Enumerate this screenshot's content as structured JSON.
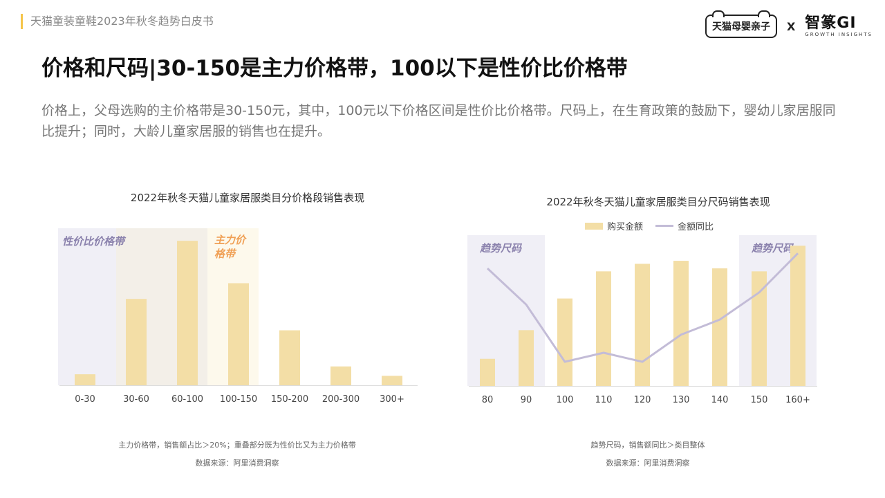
{
  "header": {
    "title": "天猫童装童鞋2023年秋冬趋势白皮书"
  },
  "logos": {
    "tmall": "天猫母婴亲子",
    "x": "X",
    "gi_main": "智篆GI",
    "gi_sub": "GROWTH INSIGHTS"
  },
  "main_title": "价格和尺码|30-150是主力价格带，100以下是性价比价格带",
  "description": "价格上，父母选购的主价格带是30-150元，其中，100元以下价格区间是性价比价格带。尺码上，在生育政策的鼓励下，婴幼儿家居服同比提升；同时，大龄儿童家居服的销售也在提升。",
  "colors": {
    "bar": "#f3dea6",
    "line": "#c3bcd7",
    "zone_purple": "#f0eff6",
    "zone_mixed": "#f3efe8",
    "zone_yellow": "#fdf9ec",
    "label_purple": "#8b82ad",
    "label_orange": "#f0a055",
    "axis": "#dddddd"
  },
  "chart_data": [
    {
      "type": "bar",
      "title": "2022年秋冬天猫儿童家居服类目分价格段销售表现",
      "categories": [
        "0-30",
        "30-60",
        "60-100",
        "100-150",
        "150-200",
        "200-300",
        "300+"
      ],
      "values": [
        7,
        55,
        92,
        65,
        35,
        12,
        6
      ],
      "ylim": [
        0,
        100
      ],
      "zones": [
        {
          "label": "性价比价格带",
          "from": "0-30",
          "to": "60-100"
        },
        {
          "label": "主力价格带",
          "from": "30-60",
          "to": "100-150"
        }
      ],
      "notes": [
        "主力价格带，销售额占比＞20%；重叠部分既为性价比又为主力价格带",
        "数据来源：阿里消费洞察"
      ]
    },
    {
      "type": "bar",
      "title": "2022年秋冬天猫儿童家居服类目分尺码销售表现",
      "categories": [
        "80",
        "90",
        "100",
        "110",
        "120",
        "130",
        "140",
        "150",
        "160+"
      ],
      "series": [
        {
          "name": "购买金额",
          "type": "bar",
          "values": [
            18,
            37,
            58,
            76,
            81,
            83,
            78,
            76,
            93
          ]
        },
        {
          "name": "金额同比",
          "type": "line",
          "values": [
            78,
            54,
            16,
            22,
            16,
            34,
            44,
            62,
            88
          ]
        }
      ],
      "ylim": [
        0,
        100
      ],
      "zones": [
        {
          "label": "趋势尺码",
          "from": "80",
          "to": "90"
        },
        {
          "label": "趋势尺码",
          "from": "150",
          "to": "160+"
        }
      ],
      "notes": [
        "趋势尺码，销售额同比＞类目整体",
        "数据来源：阿里消费洞察"
      ]
    }
  ]
}
